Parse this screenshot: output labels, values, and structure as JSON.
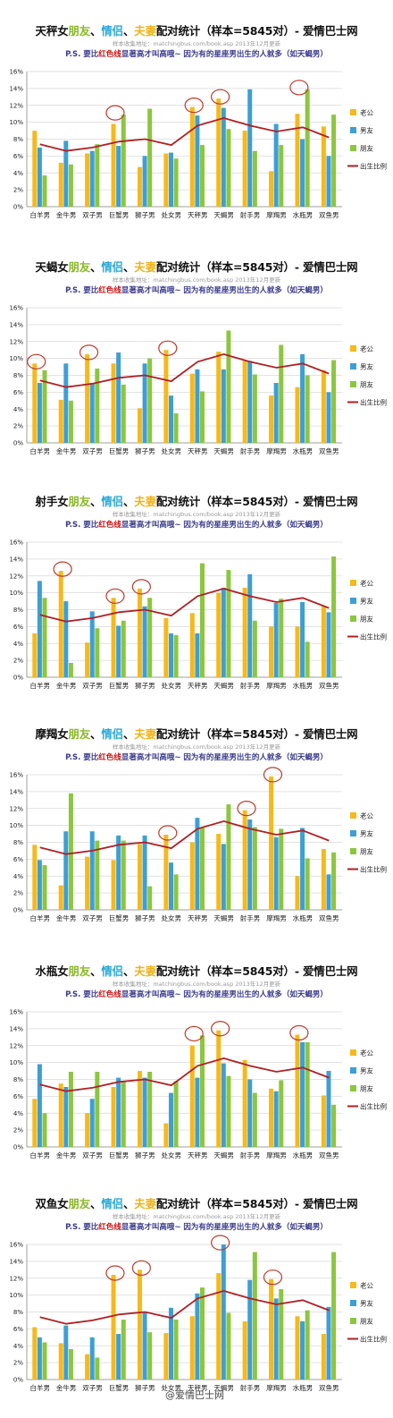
{
  "common": {
    "title_friend": "朋友",
    "sep1": "、",
    "title_lover": "情侣",
    "sep2": "、",
    "title_spouse": "夫妻",
    "title_suffix": "配对统计（样本=5845对）- 爱情巴士网",
    "source": "样本收集地址：matchingbus.com/book.asp      2013年12月更新",
    "note_pre": "P.S. 要比",
    "note_red": "红色线",
    "note_post": "显著高才叫高哦~ 因为有的星座男出生的人就多（如天蝎男）",
    "watermark": "@爱情巴士网"
  },
  "colors": {
    "husband": "#f5b91a",
    "boyfriend": "#3d9fd3",
    "friend": "#8cc63f",
    "birth_ratio": "#b01f24",
    "circle": "#c0392b",
    "grid": "#d8d8d8"
  },
  "chart_data": [
    {
      "type": "bar",
      "title_sign": "天秤女",
      "categories": [
        "白羊男",
        "金牛男",
        "双子男",
        "巨蟹男",
        "狮子男",
        "处女男",
        "天秤男",
        "天蝎男",
        "射手男",
        "摩羯男",
        "水瓶男",
        "双鱼男"
      ],
      "y_ticks": [
        "0%",
        "2%",
        "4%",
        "6%",
        "8%",
        "10%",
        "12%",
        "14%",
        "16%"
      ],
      "ylim": [
        0,
        16
      ],
      "legend": [
        "老公",
        "男友",
        "朋友",
        "出生比例"
      ],
      "series": [
        {
          "name": "老公",
          "values": [
            9.0,
            5.2,
            6.3,
            9.8,
            4.7,
            6.3,
            11.8,
            12.8,
            9.0,
            4.2,
            11.0,
            9.5
          ]
        },
        {
          "name": "男友",
          "values": [
            7.0,
            7.8,
            6.6,
            7.2,
            6.0,
            6.4,
            10.8,
            11.7,
            13.9,
            9.8,
            8.0,
            6.0
          ]
        },
        {
          "name": "朋友",
          "values": [
            3.7,
            5.0,
            7.4,
            10.9,
            11.6,
            5.7,
            7.3,
            9.2,
            6.6,
            7.3,
            13.9,
            10.9
          ]
        },
        {
          "name": "出生比例",
          "values": [
            7.4,
            6.6,
            7.0,
            7.7,
            8.0,
            7.3,
            9.6,
            10.5,
            9.6,
            8.9,
            9.4,
            8.2
          ]
        }
      ],
      "circled": [
        3,
        6,
        7,
        10
      ]
    },
    {
      "type": "bar",
      "title_sign": "天蝎女",
      "categories": [
        "白羊男",
        "金牛男",
        "双子男",
        "巨蟹男",
        "狮子男",
        "处女男",
        "天秤男",
        "天蝎男",
        "射手男",
        "摩羯男",
        "水瓶男",
        "双鱼男"
      ],
      "y_ticks": [
        "0%",
        "2%",
        "4%",
        "6%",
        "8%",
        "10%",
        "12%",
        "14%",
        "16%"
      ],
      "ylim": [
        0,
        16
      ],
      "legend": [
        "老公",
        "男友",
        "朋友",
        "出生比例"
      ],
      "series": [
        {
          "name": "老公",
          "values": [
            9.4,
            5.1,
            10.5,
            9.4,
            4.1,
            11.0,
            8.2,
            10.8,
            9.8,
            5.6,
            6.6,
            8.6
          ]
        },
        {
          "name": "男友",
          "values": [
            7.1,
            9.4,
            7.1,
            10.7,
            9.4,
            5.6,
            8.7,
            8.7,
            9.7,
            7.1,
            10.5,
            6.0
          ]
        },
        {
          "name": "朋友",
          "values": [
            8.6,
            5.0,
            8.8,
            6.9,
            10.0,
            3.5,
            6.1,
            13.3,
            8.1,
            11.6,
            8.0,
            9.8
          ]
        },
        {
          "name": "出生比例",
          "values": [
            7.4,
            6.6,
            7.0,
            7.7,
            8.0,
            7.3,
            9.6,
            10.5,
            9.6,
            8.9,
            9.4,
            8.2
          ]
        }
      ],
      "circled": [
        0,
        2,
        5
      ]
    },
    {
      "type": "bar",
      "title_sign": "射手女",
      "categories": [
        "白羊男",
        "金牛男",
        "双子男",
        "巨蟹男",
        "狮子男",
        "处女男",
        "天秤男",
        "天蝎男",
        "射手男",
        "摩羯男",
        "水瓶男",
        "双鱼男"
      ],
      "y_ticks": [
        "0%",
        "2%",
        "4%",
        "6%",
        "8%",
        "10%",
        "12%",
        "14%",
        "16%"
      ],
      "ylim": [
        0,
        16
      ],
      "legend": [
        "老公",
        "男友",
        "朋友",
        "出生比例"
      ],
      "series": [
        {
          "name": "老公",
          "values": [
            5.2,
            12.6,
            4.1,
            9.4,
            10.5,
            7.0,
            7.6,
            10.0,
            10.6,
            6.0,
            6.0,
            8.4
          ]
        },
        {
          "name": "男友",
          "values": [
            11.4,
            9.0,
            7.8,
            6.1,
            8.4,
            5.2,
            5.2,
            10.6,
            12.2,
            8.8,
            8.9,
            7.7
          ]
        },
        {
          "name": "朋友",
          "values": [
            9.4,
            1.7,
            5.8,
            6.7,
            9.4,
            5.0,
            13.5,
            12.7,
            6.7,
            9.3,
            4.2,
            14.3
          ]
        },
        {
          "name": "出生比例",
          "values": [
            7.4,
            6.6,
            7.0,
            7.7,
            8.0,
            7.3,
            9.6,
            10.5,
            9.6,
            8.9,
            9.4,
            8.2
          ]
        }
      ],
      "circled": [
        1,
        3,
        4
      ]
    },
    {
      "type": "bar",
      "title_sign": "摩羯女",
      "categories": [
        "白羊男",
        "金牛男",
        "双子男",
        "巨蟹男",
        "狮子男",
        "处女男",
        "天秤男",
        "天蝎男",
        "射手男",
        "摩羯男",
        "水瓶男",
        "双鱼男"
      ],
      "y_ticks": [
        "0%",
        "2%",
        "4%",
        "6%",
        "8%",
        "10%",
        "12%",
        "14%",
        "16%"
      ],
      "ylim": [
        0,
        16
      ],
      "legend": [
        "老公",
        "男友",
        "朋友",
        "出生比例"
      ],
      "series": [
        {
          "name": "老公",
          "values": [
            7.7,
            2.9,
            6.3,
            5.9,
            7.8,
            8.9,
            8.0,
            9.0,
            11.8,
            15.8,
            4.0,
            7.2
          ]
        },
        {
          "name": "男友",
          "values": [
            5.9,
            9.3,
            9.3,
            8.8,
            8.8,
            5.6,
            10.9,
            7.8,
            10.7,
            8.6,
            9.7,
            4.2
          ]
        },
        {
          "name": "朋友",
          "values": [
            5.3,
            13.8,
            8.2,
            8.2,
            2.8,
            4.2,
            9.8,
            12.5,
            9.8,
            9.6,
            6.1,
            6.8
          ]
        },
        {
          "name": "出生比例",
          "values": [
            7.4,
            6.6,
            7.0,
            7.7,
            8.0,
            7.3,
            9.6,
            10.5,
            9.6,
            8.9,
            9.4,
            8.2
          ]
        }
      ],
      "circled": [
        5,
        8,
        9
      ]
    },
    {
      "type": "bar",
      "title_sign": "水瓶女",
      "categories": [
        "白羊男",
        "金牛男",
        "双子男",
        "巨蟹男",
        "狮子男",
        "处女男",
        "天秤男",
        "天蝎男",
        "射手男",
        "摩羯男",
        "水瓶男",
        "双鱼男"
      ],
      "y_ticks": [
        "0%",
        "2%",
        "4%",
        "6%",
        "8%",
        "10%",
        "12%",
        "14%",
        "16%"
      ],
      "ylim": [
        0,
        16
      ],
      "legend": [
        "老公",
        "男友",
        "朋友",
        "出生比例"
      ],
      "series": [
        {
          "name": "老公",
          "values": [
            5.7,
            7.5,
            4.0,
            7.1,
            9.0,
            2.8,
            12.0,
            13.8,
            10.3,
            6.9,
            13.3,
            6.1
          ]
        },
        {
          "name": "男友",
          "values": [
            9.8,
            7.1,
            5.7,
            8.2,
            8.2,
            6.4,
            8.2,
            9.9,
            8.0,
            6.6,
            12.4,
            9.0
          ]
        },
        {
          "name": "朋友",
          "values": [
            4.0,
            8.9,
            8.9,
            7.8,
            8.9,
            7.8,
            13.2,
            8.4,
            6.4,
            7.9,
            12.4,
            5.0
          ]
        },
        {
          "name": "出生比例",
          "values": [
            7.4,
            6.6,
            7.0,
            7.7,
            8.0,
            7.3,
            9.6,
            10.5,
            9.6,
            8.9,
            9.4,
            8.2
          ]
        }
      ],
      "circled": [
        6,
        7,
        10
      ]
    },
    {
      "type": "bar",
      "title_sign": "双鱼女",
      "categories": [
        "白羊男",
        "金牛男",
        "双子男",
        "巨蟹男",
        "狮子男",
        "处女男",
        "天秤男",
        "天蝎男",
        "射手男",
        "摩羯男",
        "水瓶男",
        "双鱼男"
      ],
      "y_ticks": [
        "0%",
        "2%",
        "4%",
        "6%",
        "8%",
        "10%",
        "12%",
        "14%",
        "16%"
      ],
      "ylim": [
        0,
        16
      ],
      "legend": [
        "老公",
        "男友",
        "朋友",
        "出生比例"
      ],
      "series": [
        {
          "name": "老公",
          "values": [
            6.2,
            4.3,
            3.0,
            12.4,
            13.0,
            5.5,
            7.5,
            12.6,
            6.9,
            11.9,
            7.5,
            5.4
          ]
        },
        {
          "name": "男友",
          "values": [
            5.0,
            6.4,
            5.0,
            5.4,
            8.0,
            8.5,
            10.2,
            16.0,
            11.8,
            9.6,
            6.9,
            8.6
          ]
        },
        {
          "name": "朋友",
          "values": [
            4.4,
            3.6,
            2.6,
            7.1,
            5.6,
            7.1,
            10.9,
            7.9,
            15.1,
            10.7,
            8.2,
            15.1
          ]
        },
        {
          "name": "出生比例",
          "values": [
            7.4,
            6.6,
            7.0,
            7.7,
            8.0,
            7.3,
            9.6,
            10.5,
            9.6,
            8.9,
            9.4,
            8.2
          ]
        }
      ],
      "circled": [
        3,
        4,
        7,
        9
      ]
    }
  ]
}
